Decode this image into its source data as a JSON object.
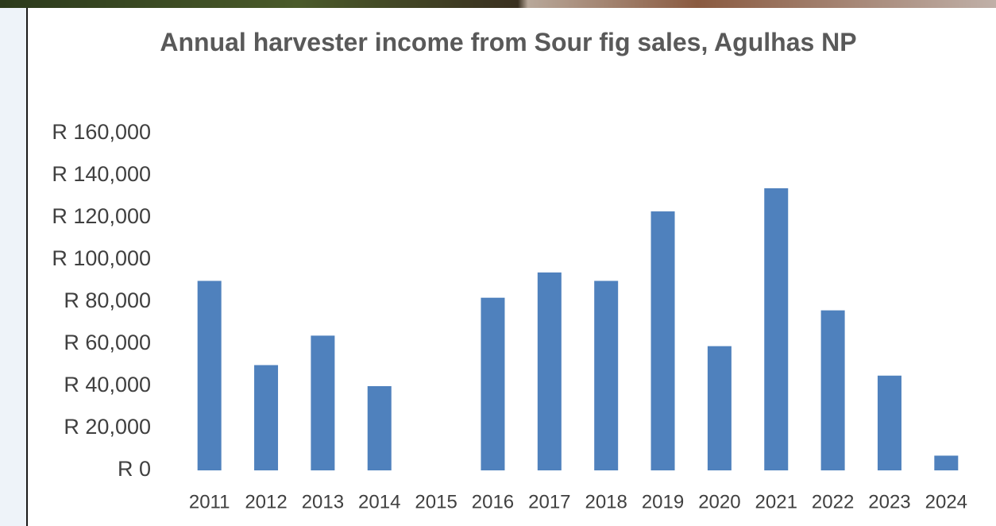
{
  "chart_data": {
    "type": "bar",
    "title": "Annual harvester income from Sour fig sales, Agulhas NP",
    "categories": [
      "2011",
      "2012",
      "2013",
      "2014",
      "2015",
      "2016",
      "2017",
      "2018",
      "2019",
      "2020",
      "2021",
      "2022",
      "2023",
      "2024"
    ],
    "values": [
      90000,
      50000,
      64000,
      40000,
      0,
      82000,
      94000,
      90000,
      123000,
      59000,
      134000,
      76000,
      45000,
      7000
    ],
    "color": "#4f81bd",
    "ylim": [
      0,
      160000
    ],
    "yticks": [
      {
        "value": 0,
        "label": "R 0"
      },
      {
        "value": 20000,
        "label": "R 20,000"
      },
      {
        "value": 40000,
        "label": "R 40,000"
      },
      {
        "value": 60000,
        "label": "R 60,000"
      },
      {
        "value": 80000,
        "label": "R 80,000"
      },
      {
        "value": 100000,
        "label": "R 100,000"
      },
      {
        "value": 120000,
        "label": "R 120,000"
      },
      {
        "value": 140000,
        "label": "R 140,000"
      },
      {
        "value": 160000,
        "label": "R 160,000"
      }
    ],
    "grid": false
  }
}
